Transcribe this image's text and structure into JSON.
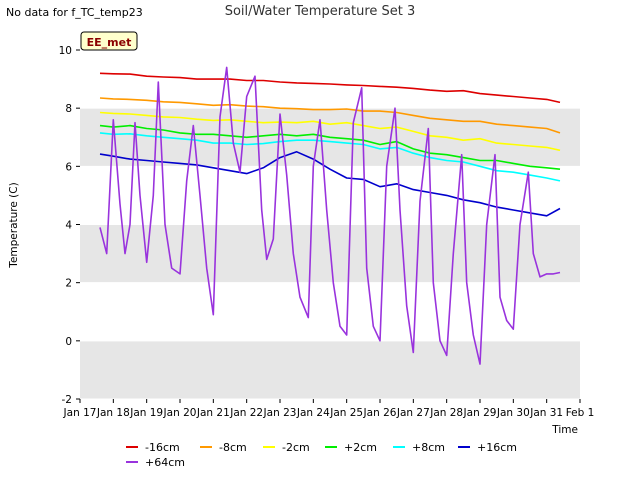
{
  "status_note": "No data for f_TC_temp23",
  "chart_data": {
    "type": "line",
    "title": "Soil/Water Temperature Set 3",
    "xlabel": "Time",
    "ylabel": "Temperature (C)",
    "badge": "EE_met",
    "xlim": [
      17,
      32
    ],
    "ylim": [
      -2,
      10
    ],
    "yticks": [
      -2,
      0,
      2,
      4,
      6,
      8,
      10
    ],
    "xtick_values": [
      17,
      18,
      19,
      20,
      21,
      22,
      23,
      24,
      25,
      26,
      27,
      28,
      29,
      30,
      31,
      32
    ],
    "xtick_labels": [
      "Jan 17",
      "Jan 18",
      "Jan 19",
      "Jan 20",
      "Jan 21",
      "Jan 22",
      "Jan 23",
      "Jan 24",
      "Jan 25",
      "Jan 26",
      "Jan 27",
      "Jan 28",
      "Jan 29",
      "Jan 30",
      "Jan 31",
      "Feb 1"
    ],
    "band_fill": "#e6e6e6",
    "legend_position": "bottom",
    "series": [
      {
        "name": "-16cm",
        "color": "#dd0000",
        "x": [
          17.6,
          18.0,
          18.5,
          19.0,
          19.5,
          20.0,
          20.5,
          21.0,
          21.5,
          22.0,
          22.5,
          23.0,
          23.5,
          24.0,
          24.5,
          25.0,
          25.5,
          26.0,
          26.5,
          27.0,
          27.5,
          28.0,
          28.5,
          29.0,
          29.5,
          30.0,
          30.5,
          31.0,
          31.4
        ],
        "y": [
          9.2,
          9.18,
          9.17,
          9.1,
          9.07,
          9.05,
          9.0,
          9.0,
          9.0,
          8.95,
          8.95,
          8.9,
          8.87,
          8.85,
          8.83,
          8.8,
          8.78,
          8.75,
          8.72,
          8.68,
          8.62,
          8.58,
          8.6,
          8.5,
          8.45,
          8.4,
          8.35,
          8.3,
          8.2
        ]
      },
      {
        "name": "-8cm",
        "color": "#ff9900",
        "x": [
          17.6,
          18.0,
          18.5,
          19.0,
          19.5,
          20.0,
          20.5,
          21.0,
          21.5,
          22.0,
          22.5,
          23.0,
          23.5,
          24.0,
          24.5,
          25.0,
          25.5,
          26.0,
          26.5,
          27.0,
          27.5,
          28.0,
          28.5,
          29.0,
          29.5,
          30.0,
          30.5,
          31.0,
          31.4
        ],
        "y": [
          8.35,
          8.32,
          8.3,
          8.27,
          8.22,
          8.2,
          8.15,
          8.1,
          8.12,
          8.07,
          8.05,
          8.0,
          7.98,
          7.95,
          7.95,
          7.97,
          7.9,
          7.9,
          7.85,
          7.75,
          7.65,
          7.6,
          7.55,
          7.55,
          7.45,
          7.4,
          7.35,
          7.3,
          7.15
        ]
      },
      {
        "name": "-2cm",
        "color": "#ffff00",
        "x": [
          17.6,
          18.0,
          18.5,
          19.0,
          19.5,
          20.0,
          20.5,
          21.0,
          21.5,
          22.0,
          22.5,
          23.0,
          23.5,
          24.0,
          24.5,
          25.0,
          25.5,
          26.0,
          26.5,
          27.0,
          27.5,
          28.0,
          28.5,
          29.0,
          29.5,
          30.0,
          30.5,
          31.0,
          31.4
        ],
        "y": [
          7.85,
          7.82,
          7.8,
          7.75,
          7.7,
          7.68,
          7.62,
          7.58,
          7.6,
          7.55,
          7.5,
          7.52,
          7.5,
          7.55,
          7.45,
          7.5,
          7.4,
          7.3,
          7.35,
          7.2,
          7.05,
          7.0,
          6.9,
          6.95,
          6.8,
          6.75,
          6.7,
          6.65,
          6.55
        ]
      },
      {
        "name": "+2cm",
        "color": "#00ee00",
        "x": [
          17.6,
          18.0,
          18.5,
          19.0,
          19.5,
          20.0,
          20.5,
          21.0,
          21.5,
          22.0,
          22.5,
          23.0,
          23.5,
          24.0,
          24.5,
          25.0,
          25.5,
          26.0,
          26.5,
          27.0,
          27.5,
          28.0,
          28.5,
          29.0,
          29.5,
          30.0,
          30.5,
          31.0,
          31.4
        ],
        "y": [
          7.4,
          7.35,
          7.4,
          7.3,
          7.25,
          7.15,
          7.1,
          7.1,
          7.05,
          7.0,
          7.05,
          7.1,
          7.05,
          7.1,
          7.0,
          6.95,
          6.9,
          6.75,
          6.85,
          6.6,
          6.45,
          6.4,
          6.3,
          6.2,
          6.2,
          6.1,
          6.0,
          5.95,
          5.9
        ]
      },
      {
        "name": "+8cm",
        "color": "#00ffff",
        "x": [
          17.6,
          18.0,
          18.5,
          19.0,
          19.5,
          20.0,
          20.5,
          21.0,
          21.5,
          22.0,
          22.5,
          23.0,
          23.5,
          24.0,
          24.5,
          25.0,
          25.5,
          26.0,
          26.5,
          27.0,
          27.5,
          28.0,
          28.5,
          29.0,
          29.5,
          30.0,
          30.5,
          31.0,
          31.4
        ],
        "y": [
          7.15,
          7.1,
          7.12,
          7.05,
          7.0,
          6.95,
          6.9,
          6.8,
          6.8,
          6.75,
          6.78,
          6.85,
          6.9,
          6.9,
          6.85,
          6.8,
          6.75,
          6.6,
          6.65,
          6.45,
          6.3,
          6.2,
          6.15,
          6.0,
          5.85,
          5.8,
          5.7,
          5.6,
          5.5
        ]
      },
      {
        "name": "+16cm",
        "color": "#0000cc",
        "x": [
          17.6,
          18.0,
          18.5,
          19.0,
          19.5,
          20.0,
          20.5,
          21.0,
          21.5,
          22.0,
          22.5,
          23.0,
          23.5,
          24.0,
          24.5,
          25.0,
          25.5,
          26.0,
          26.5,
          27.0,
          27.5,
          28.0,
          28.5,
          29.0,
          29.5,
          30.0,
          30.5,
          31.0,
          31.4
        ],
        "y": [
          6.42,
          6.35,
          6.25,
          6.2,
          6.15,
          6.1,
          6.05,
          5.95,
          5.85,
          5.75,
          5.95,
          6.3,
          6.5,
          6.25,
          5.9,
          5.6,
          5.55,
          5.3,
          5.4,
          5.2,
          5.1,
          5.0,
          4.85,
          4.75,
          4.6,
          4.5,
          4.4,
          4.3,
          4.55
        ]
      },
      {
        "name": "+64cm",
        "color": "#9933dd",
        "x": [
          17.6,
          17.8,
          18.0,
          18.2,
          18.35,
          18.5,
          18.65,
          18.8,
          19.0,
          19.2,
          19.35,
          19.55,
          19.75,
          20.0,
          20.2,
          20.4,
          20.6,
          20.8,
          21.0,
          21.2,
          21.4,
          21.6,
          21.8,
          22.0,
          22.25,
          22.45,
          22.6,
          22.8,
          23.0,
          23.2,
          23.4,
          23.6,
          23.85,
          24.0,
          24.2,
          24.4,
          24.6,
          24.8,
          25.0,
          25.2,
          25.45,
          25.6,
          25.8,
          26.0,
          26.2,
          26.45,
          26.6,
          26.8,
          27.0,
          27.2,
          27.45,
          27.6,
          27.8,
          28.0,
          28.2,
          28.45,
          28.6,
          28.8,
          29.0,
          29.2,
          29.45,
          29.6,
          29.8,
          30.0,
          30.2,
          30.45,
          30.6,
          30.8,
          31.0,
          31.2,
          31.4
        ],
        "y": [
          3.9,
          3.0,
          7.6,
          4.7,
          3.0,
          4.0,
          7.5,
          5.0,
          2.7,
          5.0,
          8.9,
          4.0,
          2.5,
          2.3,
          5.5,
          7.4,
          5.0,
          2.5,
          0.9,
          7.7,
          9.4,
          6.8,
          5.8,
          8.4,
          9.1,
          4.5,
          2.8,
          3.5,
          7.8,
          5.7,
          3.0,
          1.5,
          0.8,
          6.0,
          7.6,
          4.5,
          2.0,
          0.5,
          0.2,
          7.5,
          8.7,
          2.5,
          0.5,
          0.0,
          6.0,
          8.0,
          4.5,
          1.2,
          -0.4,
          4.8,
          7.3,
          2.0,
          0.0,
          -0.5,
          3.0,
          6.4,
          2.0,
          0.2,
          -0.8,
          4.0,
          6.4,
          1.5,
          0.7,
          0.4,
          4.0,
          5.8,
          3.0,
          2.2,
          2.3,
          2.3,
          2.35
        ]
      }
    ]
  }
}
